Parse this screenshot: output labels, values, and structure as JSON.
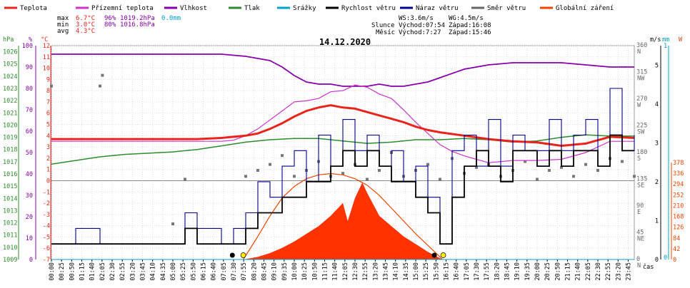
{
  "chart_data": {
    "type": "line",
    "title": "14.12.2020",
    "legend": {
      "placement": "top",
      "items": [
        {
          "label": "Teplota",
          "color": "#e8241c"
        },
        {
          "label": "Přízemní teplota",
          "color": "#cc33cc"
        },
        {
          "label": "Vlhkost",
          "color": "#8800aa"
        },
        {
          "label": "Tlak",
          "color": "#2e8b2e"
        },
        {
          "label": "Srážky",
          "color": "#00a0d0"
        },
        {
          "label": "Rychlost větru",
          "color": "#000000"
        },
        {
          "label": "Náraz větru",
          "color": "#000090"
        },
        {
          "label": "Směr větru",
          "color": "#666666"
        },
        {
          "label": "Globální záření",
          "color": "#ee4400"
        }
      ]
    },
    "stats": {
      "max": {
        "label": "max",
        "temp": "6.7°C",
        "hum": "96%",
        "press": "1019.2hPa",
        "rain": "0.0mm"
      },
      "min": {
        "label": "min",
        "temp": "3.0°C",
        "hum": "80%",
        "press": "1016.8hPa"
      },
      "avg": {
        "label": "avg",
        "temp": "4.3°C"
      }
    },
    "wind_summary": {
      "ws": "WS:3.6m/s",
      "wg": "WG:4.5m/s"
    },
    "sun": {
      "label": "Slunce",
      "rise": "Východ:07:54",
      "set": "Západ:16:08"
    },
    "moon": {
      "label": "Měsíc",
      "rise": "Východ:7:27",
      "set": "Západ:15:46"
    },
    "axes": {
      "hpa": {
        "unit": "hPa",
        "ticks": [
          1026,
          1025,
          1024,
          1023,
          1022,
          1021,
          1020,
          1019,
          1018,
          1017,
          1016,
          1015,
          1014,
          1013,
          1012,
          1011,
          1010,
          1009
        ]
      },
      "pct": {
        "unit": "%",
        "ticks": [
          100,
          90,
          80,
          70,
          60,
          50,
          40,
          30,
          20,
          10,
          0
        ]
      },
      "temp": {
        "unit": "°C",
        "ticks": [
          12,
          11,
          10,
          9,
          8,
          7,
          6,
          5,
          4,
          3,
          2,
          1,
          0,
          -1,
          -2,
          -3,
          -4,
          -5,
          -6,
          -7
        ]
      },
      "wind": {
        "unit": "m/s",
        "ticks": [
          5,
          4,
          3,
          2,
          1,
          0
        ]
      },
      "rain": {
        "unit": "mm",
        "ticks": [
          1,
          0
        ]
      },
      "rad": {
        "unit": "W",
        "ticks": [
          378,
          336,
          294,
          252,
          210,
          168,
          126,
          84,
          42,
          0
        ]
      },
      "dir": {
        "ticks": [
          {
            "deg": "360",
            "name": "N"
          },
          {
            "deg": "315",
            "name": "NW"
          },
          {
            "deg": "270",
            "name": "W"
          },
          {
            "deg": "225",
            "name": "SW"
          },
          {
            "deg": "180",
            "name": "S"
          },
          {
            "deg": "135",
            "name": "SE"
          },
          {
            "deg": "90",
            "name": "E"
          },
          {
            "deg": "45",
            "name": "NE"
          },
          {
            "deg": "0",
            "name": "N"
          }
        ]
      },
      "x_unit": "čas",
      "x_ticks": [
        "00:00",
        "00:25",
        "00:50",
        "01:15",
        "01:40",
        "02:05",
        "02:30",
        "02:55",
        "03:20",
        "03:45",
        "04:10",
        "04:35",
        "05:00",
        "05:25",
        "05:50",
        "06:15",
        "06:40",
        "07:05",
        "07:30",
        "07:55",
        "08:20",
        "08:45",
        "09:10",
        "09:35",
        "10:00",
        "10:25",
        "10:50",
        "11:15",
        "11:40",
        "12:05",
        "12:30",
        "12:55",
        "13:20",
        "13:45",
        "14:10",
        "14:35",
        "15:00",
        "15:25",
        "15:50",
        "16:15",
        "16:40",
        "17:05",
        "17:30",
        "17:55",
        "18:20",
        "18:45",
        "19:10",
        "19:35",
        "20:00",
        "20:25",
        "20:50",
        "21:15",
        "21:40",
        "22:05",
        "22:30",
        "22:55",
        "23:20",
        "23:45"
      ]
    },
    "series": {
      "temperature_c": {
        "x": [
          0,
          1,
          2,
          3,
          4,
          5,
          6,
          7,
          7.5,
          8,
          8.5,
          9,
          9.5,
          10,
          10.5,
          11,
          11.5,
          12,
          12.5,
          13,
          13.5,
          14,
          14.5,
          15,
          15.5,
          16,
          17,
          18,
          19,
          20,
          21,
          22,
          23,
          24
        ],
        "y": [
          3.7,
          3.7,
          3.7,
          3.7,
          3.7,
          3.7,
          3.7,
          3.8,
          3.9,
          4.0,
          4.2,
          4.6,
          5.1,
          5.7,
          6.2,
          6.5,
          6.7,
          6.5,
          6.4,
          6.1,
          5.8,
          5.5,
          5.2,
          4.8,
          4.5,
          4.3,
          4.0,
          3.7,
          3.5,
          3.4,
          3.1,
          3.3,
          3.9,
          3.8
        ]
      },
      "ground_temp_c": {
        "x": [
          0,
          1,
          2,
          3,
          4,
          5,
          6,
          7,
          7.5,
          8,
          8.5,
          9,
          9.5,
          10,
          10.5,
          11,
          11.5,
          12,
          12.5,
          13,
          13.5,
          14,
          14.5,
          15,
          15.5,
          16,
          16.5,
          17,
          17.5,
          18,
          19,
          20,
          21,
          22,
          23,
          24
        ],
        "y": [
          3.5,
          3.5,
          3.5,
          3.5,
          3.5,
          3.5,
          3.5,
          3.5,
          3.6,
          4.0,
          4.6,
          5.4,
          6.2,
          7.0,
          7.1,
          7.3,
          7.9,
          8.0,
          8.5,
          8.3,
          7.7,
          7.3,
          6.3,
          5.2,
          4.2,
          3.2,
          2.6,
          2.2,
          1.9,
          1.6,
          1.8,
          1.8,
          1.9,
          2.5,
          3.5,
          3.5
        ]
      },
      "humidity_pct": {
        "x": [
          0,
          1,
          2,
          3,
          4,
          5,
          6,
          7,
          8,
          9,
          9.5,
          10,
          10.5,
          11,
          11.5,
          12,
          12.5,
          13,
          13.5,
          14,
          14.5,
          15,
          15.5,
          16,
          17,
          18,
          19,
          20,
          21,
          22,
          23,
          24
        ],
        "y": [
          96,
          96,
          96,
          96,
          96,
          96,
          96,
          96,
          95,
          93,
          90,
          86,
          83,
          82,
          82,
          81,
          81,
          81,
          82,
          81,
          81,
          82,
          83,
          85,
          89,
          91,
          92,
          92,
          92,
          91,
          90,
          90
        ]
      },
      "pressure_hpa": {
        "x": [
          0,
          1,
          2,
          3,
          4,
          5,
          6,
          7,
          8,
          9,
          10,
          11,
          12,
          13,
          14,
          15,
          16,
          17,
          18,
          19,
          20,
          21,
          22,
          23,
          24
        ],
        "y": [
          1016.8,
          1017.1,
          1017.4,
          1017.6,
          1017.7,
          1017.8,
          1018.0,
          1018.3,
          1018.6,
          1018.8,
          1018.9,
          1018.9,
          1018.7,
          1018.5,
          1018.6,
          1018.8,
          1018.8,
          1018.9,
          1018.8,
          1018.6,
          1018.7,
          1019.0,
          1019.2,
          1019.1,
          1019.1
        ]
      },
      "wind_speed_ms": {
        "x": [
          0,
          1,
          2,
          3,
          4,
          5,
          5.5,
          6,
          7,
          7.5,
          8,
          8.5,
          9,
          9.5,
          10,
          10.5,
          11,
          11.5,
          12,
          12.5,
          13,
          13.5,
          14,
          14.5,
          15,
          15.5,
          16,
          16.5,
          17,
          17.5,
          18,
          18.5,
          19,
          19.5,
          20,
          20.5,
          21,
          21.5,
          22,
          22.5,
          23,
          23.5,
          24
        ],
        "y": [
          0.4,
          0.4,
          0.4,
          0.4,
          0.4,
          0.4,
          0.8,
          0.4,
          0.4,
          0.4,
          0.8,
          1.2,
          1.2,
          1.6,
          1.6,
          2.0,
          2.0,
          2.4,
          2.8,
          2.4,
          2.8,
          2.4,
          2.0,
          2.0,
          1.6,
          1.2,
          0.4,
          1.6,
          2.4,
          2.8,
          2.4,
          2.0,
          2.8,
          2.8,
          2.4,
          2.8,
          2.4,
          2.8,
          2.8,
          2.4,
          3.2,
          2.8,
          2.8
        ]
      },
      "wind_gust_ms": {
        "x": [
          0,
          1,
          2,
          3,
          4,
          5,
          5.5,
          6,
          7,
          7.5,
          8,
          8.5,
          9,
          9.5,
          10,
          10.5,
          11,
          11.5,
          12,
          12.5,
          13,
          13.5,
          14,
          14.5,
          15,
          15.5,
          16,
          16.5,
          17,
          17.5,
          18,
          18.5,
          19,
          19.5,
          20,
          20.5,
          21,
          21.5,
          22,
          22.5,
          23,
          23.5,
          24
        ],
        "y": [
          0.4,
          0.8,
          0.4,
          0.4,
          0.4,
          0.4,
          1.2,
          0.8,
          0.4,
          0.8,
          1.2,
          2.0,
          1.6,
          2.4,
          2.8,
          2.0,
          3.2,
          2.4,
          3.6,
          2.8,
          3.2,
          2.4,
          2.8,
          2.0,
          2.4,
          1.6,
          0.4,
          2.8,
          3.2,
          2.4,
          3.6,
          2.4,
          3.2,
          2.8,
          2.8,
          3.6,
          2.8,
          3.2,
          3.6,
          2.4,
          4.4,
          2.8,
          3.2
        ]
      },
      "solar_radiation_wm2": {
        "x": [
          7.9,
          8.5,
          9,
          9.5,
          10,
          10.5,
          11,
          11.5,
          12,
          12.2,
          12.5,
          12.8,
          13,
          13.5,
          14,
          14.5,
          15,
          15.5,
          16,
          16.1
        ],
        "y": [
          0,
          10,
          25,
          45,
          70,
          100,
          130,
          170,
          220,
          150,
          240,
          300,
          260,
          170,
          130,
          90,
          60,
          30,
          5,
          0
        ]
      },
      "theoretical_radiation_wm2": {
        "x": [
          7.9,
          8.5,
          9,
          9.5,
          10,
          10.5,
          11,
          11.5,
          12,
          12.5,
          13,
          13.5,
          14,
          14.5,
          15,
          15.5,
          16,
          16.1
        ],
        "y": [
          0,
          90,
          170,
          240,
          285,
          315,
          330,
          335,
          330,
          315,
          290,
          250,
          200,
          150,
          100,
          55,
          10,
          0
        ]
      },
      "wind_direction_deg": {
        "x": [
          0,
          2,
          2.1,
          5,
          5.5,
          8,
          8.5,
          9,
          9.5,
          10,
          10.5,
          11,
          11.5,
          12,
          12.5,
          13,
          13.5,
          14,
          14.5,
          15,
          15.5,
          16,
          16.5,
          17,
          17.5,
          18,
          18.5,
          19,
          19.5,
          20,
          20.5,
          21,
          21.5,
          22,
          22.5,
          23,
          23.5,
          24
        ],
        "y": [
          292,
          292,
          310,
          60,
          135,
          140,
          150,
          160,
          175,
          140,
          150,
          165,
          140,
          145,
          160,
          135,
          150,
          180,
          140,
          150,
          160,
          135,
          170,
          145,
          155,
          160,
          140,
          150,
          165,
          135,
          150,
          155,
          140,
          160,
          150,
          170,
          165,
          140
        ]
      },
      "precipitation_mm": {
        "x": [
          0,
          24
        ],
        "y": [
          0,
          0
        ]
      }
    },
    "markers": {
      "moonrise": "07:27",
      "sunrise": "07:54",
      "moonset": "15:46",
      "sunset": "16:08"
    }
  }
}
